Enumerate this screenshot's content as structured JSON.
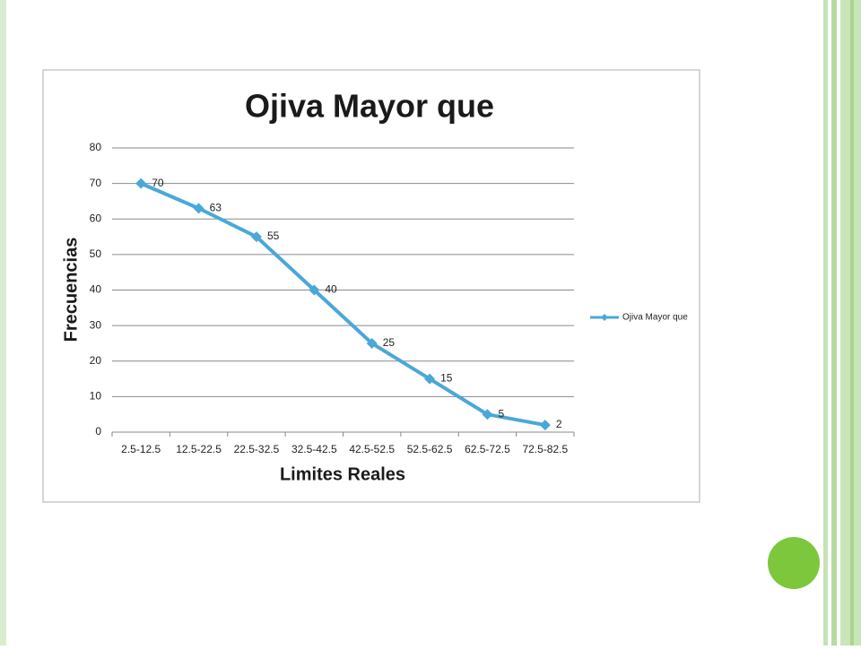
{
  "chart_data": {
    "type": "line",
    "title": "Ojiva Mayor que",
    "x_label": "Limites Reales",
    "y_label": "Frecuencias",
    "categories": [
      "2.5-12.5",
      "12.5-22.5",
      "22.5-32.5",
      "32.5-42.5",
      "42.5-52.5",
      "52.5-62.5",
      "62.5-72.5",
      "72.5-82.5"
    ],
    "series": [
      {
        "name": "Ojiva Mayor que",
        "color": "#4aa8d8",
        "values": [
          70,
          63,
          55,
          40,
          25,
          15,
          5,
          2
        ]
      }
    ],
    "ylim": [
      0,
      80
    ],
    "yticks": [
      0,
      10,
      20,
      30,
      40,
      50,
      60,
      70,
      80
    ],
    "grid": true,
    "legend": "right",
    "data_labels": true
  }
}
